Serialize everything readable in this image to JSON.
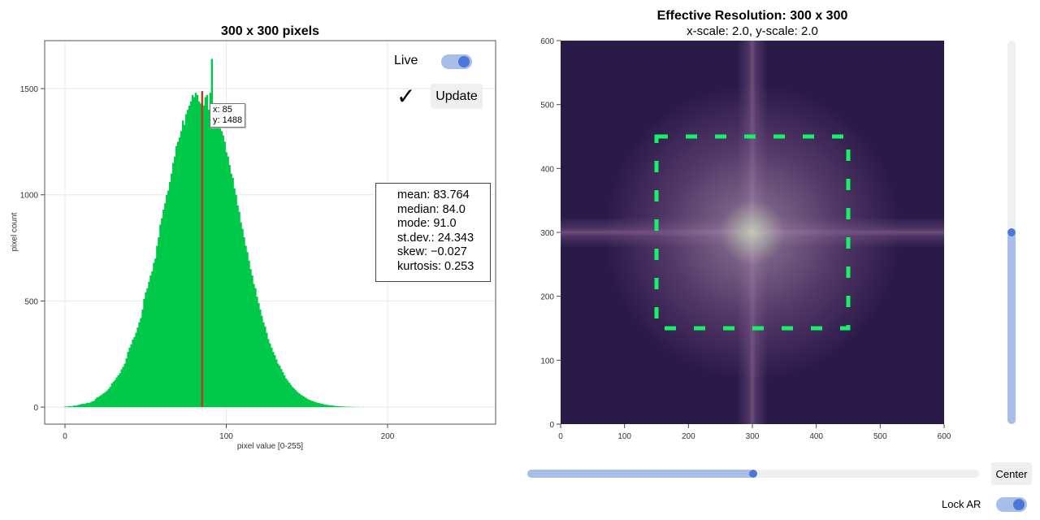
{
  "histogram": {
    "title": "300 x 300 pixels",
    "chart_data": {
      "type": "bar",
      "xlabel": "pixel value [0-255]",
      "ylabel": "pixel count",
      "xlim": [
        -12.6,
        267
      ],
      "ylim": [
        -80,
        1726
      ],
      "xticks": [
        0,
        100,
        200
      ],
      "yticks": [
        0,
        500,
        1000,
        1500
      ],
      "grid": true,
      "bar_color": "#00c94a",
      "highlight_color": "#e02020",
      "highlight_x": 85,
      "x_start": 0,
      "values": [
        3,
        2,
        4,
        5,
        4,
        6,
        8,
        7,
        10,
        12,
        14,
        16,
        15,
        18,
        21,
        20,
        24,
        27,
        30,
        40,
        46,
        49,
        55,
        60,
        66,
        71,
        78,
        86,
        95,
        112,
        120,
        128,
        140,
        150,
        160,
        178,
        190,
        205,
        230,
        260,
        280,
        295,
        318,
        330,
        350,
        375,
        400,
        420,
        460,
        510,
        540,
        560,
        590,
        620,
        640,
        680,
        700,
        760,
        800,
        860,
        890,
        930,
        960,
        1000,
        1020,
        1060,
        1100,
        1150,
        1180,
        1230,
        1250,
        1270,
        1300,
        1350,
        1330,
        1380,
        1400,
        1420,
        1440,
        1470,
        1460,
        1480,
        1470,
        1440,
        1430,
        1488,
        1420,
        1460,
        1470,
        1400,
        1480,
        1640,
        1430,
        1410,
        1390,
        1350,
        1340,
        1300,
        1280,
        1250,
        1200,
        1180,
        1140,
        1100,
        1080,
        1030,
        1000,
        950,
        920,
        870,
        840,
        800,
        760,
        730,
        690,
        650,
        620,
        580,
        560,
        520,
        490,
        460,
        430,
        400,
        380,
        350,
        320,
        300,
        280,
        260,
        245,
        225,
        205,
        195,
        180,
        165,
        150,
        135,
        125,
        115,
        105,
        95,
        88,
        80,
        72,
        66,
        60,
        55,
        50,
        45,
        40,
        36,
        33,
        30,
        27,
        24,
        22,
        20,
        18,
        16,
        14,
        12,
        11,
        10,
        9,
        8,
        7,
        6,
        5,
        5,
        4,
        4,
        3,
        3,
        2,
        2,
        2,
        1,
        1,
        1,
        1,
        0,
        1,
        0,
        0,
        1
      ]
    },
    "tooltip": {
      "x": "x: 85",
      "y": "y: 1488"
    },
    "stats": [
      "mean: 83.764",
      "median: 84.0",
      "mode: 91.0",
      "st.dev.: 24.343",
      "skew: −0.027",
      "kurtosis: 0.253"
    ],
    "xtick_labels": [
      "0",
      "100",
      "200"
    ],
    "ytick_labels": [
      "0",
      "500",
      "1000",
      "1500"
    ]
  },
  "controls": {
    "live_label": "Live",
    "live_on": true,
    "check_icon": "✓",
    "update_label": "Update",
    "center_label": "Center",
    "lock_ar_label": "Lock AR",
    "lock_ar_on": true,
    "h_slider_value": 0.5,
    "v_slider_value": 0.5,
    "accent": "#4a78d8",
    "accent_light": "#a8bde8"
  },
  "heatmap": {
    "title": "Effective Resolution: 300 x 300",
    "subtitle": "x-scale: 2.0, y-scale: 2.0",
    "chart_data": {
      "type": "heatmap",
      "xlim": [
        0,
        600
      ],
      "ylim": [
        0,
        600
      ],
      "xticks": [
        "0",
        "100",
        "200",
        "300",
        "400",
        "500",
        "600"
      ],
      "yticks": [
        "0",
        "100",
        "200",
        "300",
        "400",
        "500",
        "600"
      ],
      "colormap": "dark purple to pale green (FFT magnitude)",
      "selection_rect": {
        "x0": 150,
        "y0": 150,
        "x1": 450,
        "y1": 450,
        "color": "#19f06a",
        "style": "dashed"
      }
    }
  }
}
